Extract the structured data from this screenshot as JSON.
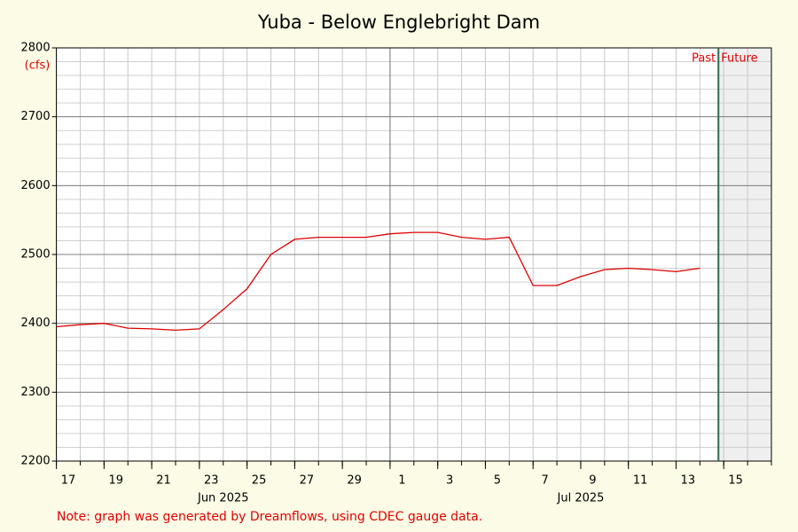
{
  "chart_data": {
    "type": "line",
    "title": "Yuba - Below Englebright Dam",
    "y_label": "(cfs)",
    "note": "Note: graph was generated by Dreamflows, using CDEC gauge data.",
    "past_label": "Past",
    "future_label": "Future",
    "now": "2025-07-14T18:40",
    "x": [
      "2025-06-17",
      "2025-06-18",
      "2025-06-19",
      "2025-06-20",
      "2025-06-21",
      "2025-06-22",
      "2025-06-23",
      "2025-06-24",
      "2025-06-25",
      "2025-06-26",
      "2025-06-27",
      "2025-06-28",
      "2025-06-29",
      "2025-06-30",
      "2025-07-01",
      "2025-07-02",
      "2025-07-03",
      "2025-07-04",
      "2025-07-05",
      "2025-07-06",
      "2025-07-07",
      "2025-07-08",
      "2025-07-09",
      "2025-07-10",
      "2025-07-11",
      "2025-07-12",
      "2025-07-13",
      "2025-07-14"
    ],
    "series": [
      {
        "name": "Flow",
        "color": "#e00000",
        "values": [
          2395,
          2398,
          2400,
          2393,
          2392,
          2390,
          2392,
          2420,
          2450,
          2500,
          2522,
          2525,
          2525,
          2525,
          2530,
          2532,
          2532,
          2525,
          2522,
          2525,
          2455,
          2455,
          2468,
          2478,
          2480,
          2478,
          2475,
          2480
        ]
      }
    ],
    "xlim": [
      "2025-06-17",
      "2025-07-17"
    ],
    "xticks": [
      {
        "value": "2025-06-17",
        "label": "17"
      },
      {
        "value": "2025-06-19",
        "label": "19"
      },
      {
        "value": "2025-06-21",
        "label": "21"
      },
      {
        "value": "2025-06-23",
        "label": "23"
      },
      {
        "value": "2025-06-25",
        "label": "25"
      },
      {
        "value": "2025-06-27",
        "label": "27"
      },
      {
        "value": "2025-06-29",
        "label": "29"
      },
      {
        "value": "2025-07-01",
        "label": "1"
      },
      {
        "value": "2025-07-03",
        "label": "3"
      },
      {
        "value": "2025-07-05",
        "label": "5"
      },
      {
        "value": "2025-07-07",
        "label": "7"
      },
      {
        "value": "2025-07-09",
        "label": "9"
      },
      {
        "value": "2025-07-11",
        "label": "11"
      },
      {
        "value": "2025-07-13",
        "label": "13"
      },
      {
        "value": "2025-07-15",
        "label": "15"
      }
    ],
    "month_labels": [
      {
        "value": "2025-06-24",
        "label": "Jun 2025"
      },
      {
        "value": "2025-07-09",
        "label": "Jul 2025"
      }
    ],
    "ylim": [
      2200,
      2800
    ],
    "yticks": [
      2200,
      2300,
      2400,
      2500,
      2600,
      2700,
      2800
    ],
    "grid": true
  }
}
